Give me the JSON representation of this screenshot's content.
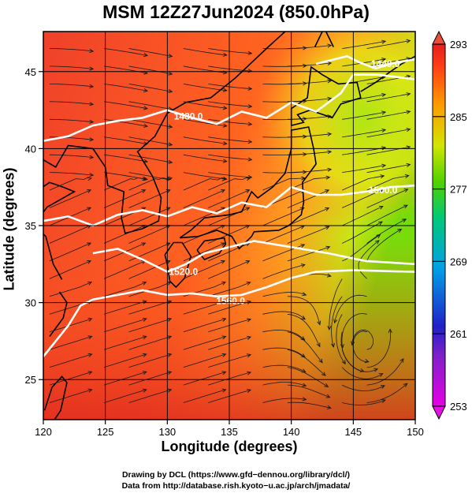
{
  "title": "MSM 12Z27Jun2024 (850.0hPa)",
  "x_axis": {
    "label": "Longitude (degrees)",
    "ticks": [
      "120",
      "125",
      "130",
      "135",
      "140",
      "145",
      "150"
    ],
    "range": [
      120,
      150
    ]
  },
  "y_axis": {
    "label": "Latitude  (degrees)",
    "ticks": [
      "25",
      "30",
      "35",
      "40",
      "45"
    ],
    "range": [
      22.4,
      47.6
    ]
  },
  "colorbar": {
    "ticks": [
      "293",
      "285",
      "277",
      "269",
      "261",
      "253"
    ],
    "range": [
      253,
      293
    ],
    "colors": [
      "#e600e6",
      "#2020c8",
      "#00a0e6",
      "#00c878",
      "#50d200",
      "#d2e600",
      "#ff9600",
      "#ff3c14",
      "#e61e1e"
    ]
  },
  "contours": [
    {
      "label": "1440.0"
    },
    {
      "label": "1480.0"
    },
    {
      "label": "1500.0"
    },
    {
      "label": "1520.0"
    },
    {
      "label": "1560.0"
    }
  ],
  "credits": {
    "line1": "Drawing by DCL (https://www.gfd−dennou.org/library/dcl/)",
    "line2": "Data from http://database.rish.kyoto−u.ac.jp/arch/jmadata/"
  }
}
